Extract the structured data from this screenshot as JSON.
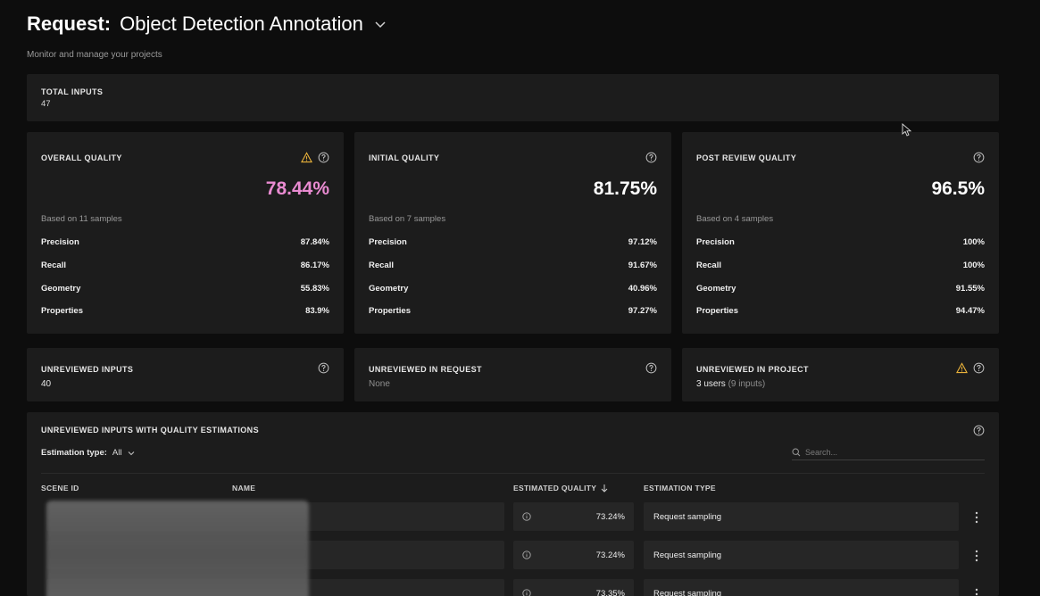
{
  "header": {
    "request_label": "Request:",
    "title": "Object Detection Annotation",
    "subtitle": "Monitor and manage your projects"
  },
  "total_inputs": {
    "label": "TOTAL INPUTS",
    "value": "47"
  },
  "quality_cards": [
    {
      "label": "OVERALL QUALITY",
      "value": "78.44%",
      "value_color": "#e98bd1",
      "based_on": "Based on 11 samples",
      "metrics": [
        {
          "name": "Precision",
          "value": "87.84%"
        },
        {
          "name": "Recall",
          "value": "86.17%"
        },
        {
          "name": "Geometry",
          "value": "55.83%"
        },
        {
          "name": "Properties",
          "value": "83.9%"
        }
      ]
    },
    {
      "label": "INITIAL QUALITY",
      "value": "81.75%",
      "value_color": "#ffffff",
      "based_on": "Based on 7 samples",
      "metrics": [
        {
          "name": "Precision",
          "value": "97.12%"
        },
        {
          "name": "Recall",
          "value": "91.67%"
        },
        {
          "name": "Geometry",
          "value": "40.96%"
        },
        {
          "name": "Properties",
          "value": "97.27%"
        }
      ]
    },
    {
      "label": "POST REVIEW QUALITY",
      "value": "96.5%",
      "value_color": "#ffffff",
      "based_on": "Based on 4 samples",
      "metrics": [
        {
          "name": "Precision",
          "value": "100%"
        },
        {
          "name": "Recall",
          "value": "100%"
        },
        {
          "name": "Geometry",
          "value": "91.55%"
        },
        {
          "name": "Properties",
          "value": "94.47%"
        }
      ]
    }
  ],
  "unreviewed": [
    {
      "label": "UNREVIEWED INPUTS",
      "value": "40",
      "sub": ""
    },
    {
      "label": "UNREVIEWED IN REQUEST",
      "value": "None",
      "sub": ""
    },
    {
      "label": "UNREVIEWED IN PROJECT",
      "value": "3 users",
      "sub": "(9 inputs)"
    }
  ],
  "table": {
    "title": "UNREVIEWED INPUTS WITH QUALITY ESTIMATIONS",
    "filter_label": "Estimation type:",
    "filter_value": "All",
    "search_placeholder": "Search...",
    "columns": [
      "SCENE ID",
      "NAME",
      "ESTIMATED QUALITY",
      "ESTIMATION TYPE"
    ],
    "rows": [
      {
        "quality": "73.24%",
        "type": "Request sampling"
      },
      {
        "quality": "73.24%",
        "type": "Request sampling"
      },
      {
        "quality": "73.35%",
        "type": "Request sampling"
      }
    ]
  },
  "colors": {
    "warning": "#e8b13a",
    "accent_pink": "#e98bd1",
    "card_bg": "#1c1c1c",
    "page_bg": "#0d0d0d"
  },
  "icons": [
    "chevron-down-icon",
    "warning-icon",
    "help-icon",
    "info-icon",
    "kebab-icon",
    "search-icon",
    "sort-down-icon",
    "cursor-icon"
  ]
}
